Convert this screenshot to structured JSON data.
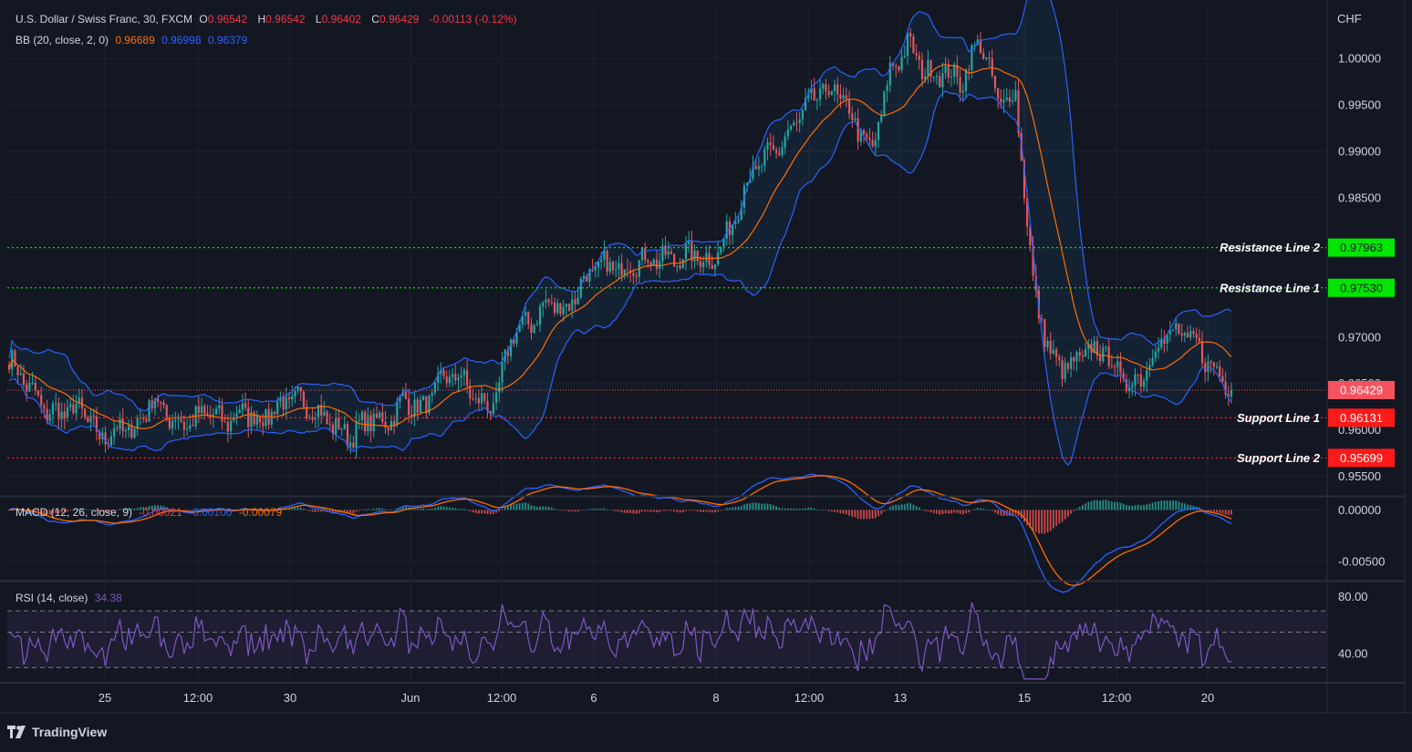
{
  "header": {
    "symbol": "U.S. Dollar / Swiss Franc, 30, FXCM",
    "o_label": "O",
    "o": "0.96542",
    "h_label": "H",
    "h": "0.96542",
    "l_label": "L",
    "l": "0.96402",
    "c_label": "C",
    "c": "0.96429",
    "change": "-0.00113 (-0.12%)"
  },
  "bb": {
    "label": "BB (20, close, 2, 0)",
    "basis": "0.96689",
    "upper": "0.96998",
    "lower": "0.96379"
  },
  "macd": {
    "label": "MACD (12, 26, close, 9)",
    "hist": "-0.00021",
    "macd": "-0.00100",
    "signal": "-0.00079"
  },
  "rsi": {
    "label": "RSI (14, close)",
    "value": "34.38"
  },
  "currency": "CHF",
  "brand": "TradingView",
  "colors": {
    "background": "#131722",
    "up": "#26a69a",
    "down": "#ef5350",
    "bb_band": "#2962ff",
    "bb_basis": "#ff6d00",
    "macd_line": "#2962ff",
    "signal_line": "#ff6d00",
    "rsi_line": "#7e57c2",
    "resistance": "#00e600",
    "support": "#ff1a1a"
  },
  "chart_data": {
    "type": "candlestick",
    "instrument": "USD/CHF",
    "interval": "30",
    "x_ticks": [
      "25",
      "12:00",
      "30",
      "Jun",
      "12:00",
      "6",
      "8",
      "12:00",
      "13",
      "15",
      "12:00",
      "20"
    ],
    "price_ticks": [
      "1.00000",
      "0.99500",
      "0.99000",
      "0.98500",
      "0.97000",
      "0.96500",
      "0.96000",
      "0.95500"
    ],
    "price_range": [
      0.953,
      1.0055
    ],
    "price_path": [
      [
        0.969,
        0.9662
      ],
      [
        0.9648,
        0.965
      ],
      [
        0.963,
        0.961
      ],
      [
        0.9625,
        0.9612
      ],
      [
        0.9635,
        0.9612
      ],
      [
        0.96,
        0.9582
      ],
      [
        0.9618,
        0.9582
      ],
      [
        0.959,
        0.9612
      ],
      [
        0.965,
        0.9618
      ],
      [
        0.9625,
        0.9598
      ],
      [
        0.961,
        0.9602
      ],
      [
        0.961,
        0.963
      ],
      [
        0.9615,
        0.96
      ],
      [
        0.963,
        0.9612
      ],
      [
        0.9635,
        0.9585
      ],
      [
        0.9605,
        0.965
      ],
      [
        0.964,
        0.9625
      ],
      [
        0.9635,
        0.961
      ],
      [
        0.9618,
        0.9592
      ],
      [
        0.9605,
        0.958
      ],
      [
        0.962,
        0.9604
      ],
      [
        0.961,
        0.9605
      ],
      [
        0.9632,
        0.9635
      ],
      [
        0.9612,
        0.963
      ],
      [
        0.9648,
        0.9658
      ],
      [
        0.965,
        0.967
      ],
      [
        0.964,
        0.9622
      ],
      [
        0.962,
        0.9628
      ],
      [
        0.9712,
        0.97
      ],
      [
        0.971,
        0.972
      ],
      [
        0.9745,
        0.973
      ],
      [
        0.972,
        0.974
      ],
      [
        0.976,
        0.9765
      ],
      [
        0.978,
        0.9775
      ],
      [
        0.9765,
        0.978
      ],
      [
        0.979,
        0.9775
      ],
      [
        0.978,
        0.979
      ],
      [
        0.9785,
        0.9782
      ],
      [
        0.98,
        0.978
      ],
      [
        0.9785,
        0.9775
      ],
      [
        0.98,
        0.982
      ],
      [
        0.9855,
        0.988
      ],
      [
        0.9895,
        0.9885
      ],
      [
        0.991,
        0.9905
      ],
      [
        0.993,
        0.9945
      ],
      [
        0.9975,
        0.995
      ],
      [
        0.997,
        0.996
      ],
      [
        0.994,
        0.9925
      ],
      [
        0.991,
        0.9885
      ],
      [
        0.995,
        1.002
      ],
      [
        1.0035,
        0.9995
      ],
      [
        1.0,
        0.997
      ],
      [
        0.998,
        0.999
      ],
      [
        0.999,
        0.996
      ],
      [
        1.0015,
        1.003
      ],
      [
        0.996,
        0.9945
      ],
      [
        0.995,
        0.997
      ],
      [
        0.976,
        0.974
      ],
      [
        0.97,
        0.965
      ],
      [
        0.968,
        0.965
      ],
      [
        0.967,
        0.97
      ],
      [
        0.969,
        0.968
      ],
      [
        0.966,
        0.964
      ],
      [
        0.9655,
        0.966
      ],
      [
        0.9695,
        0.97
      ],
      [
        0.971,
        0.97
      ],
      [
        0.9695,
        0.969
      ],
      [
        0.967,
        0.966
      ],
      [
        0.965,
        0.9643
      ]
    ],
    "bb_indicator": {
      "length": 20,
      "mult": 2,
      "basis": 0.96689,
      "upper": 0.96998,
      "lower": 0.96379
    },
    "horizontal_lines": [
      {
        "label": "Resistance Line 2",
        "value": 0.97963,
        "price_label": "0.97963",
        "color": "#00e600"
      },
      {
        "label": "Resistance Line 1",
        "value": 0.9753,
        "price_label": "0.97530",
        "color": "#00e600"
      },
      {
        "label": "Support Line 1",
        "value": 0.96131,
        "price_label": "0.96131",
        "color": "#ff1a1a"
      },
      {
        "label": "Support Line 2",
        "value": 0.95699,
        "price_label": "0.95699",
        "color": "#ff1a1a"
      }
    ],
    "current_price": {
      "value": 0.96429,
      "price_label": "0.96429"
    },
    "macd_ticks": [
      "0.00000",
      "-0.00500"
    ],
    "macd_range": [
      -0.0068,
      0.0012
    ],
    "rsi_ticks": [
      "80.00",
      "40.00"
    ],
    "rsi_range": [
      20,
      90
    ],
    "rsi_bands": [
      70,
      55,
      30
    ],
    "grid": true
  }
}
